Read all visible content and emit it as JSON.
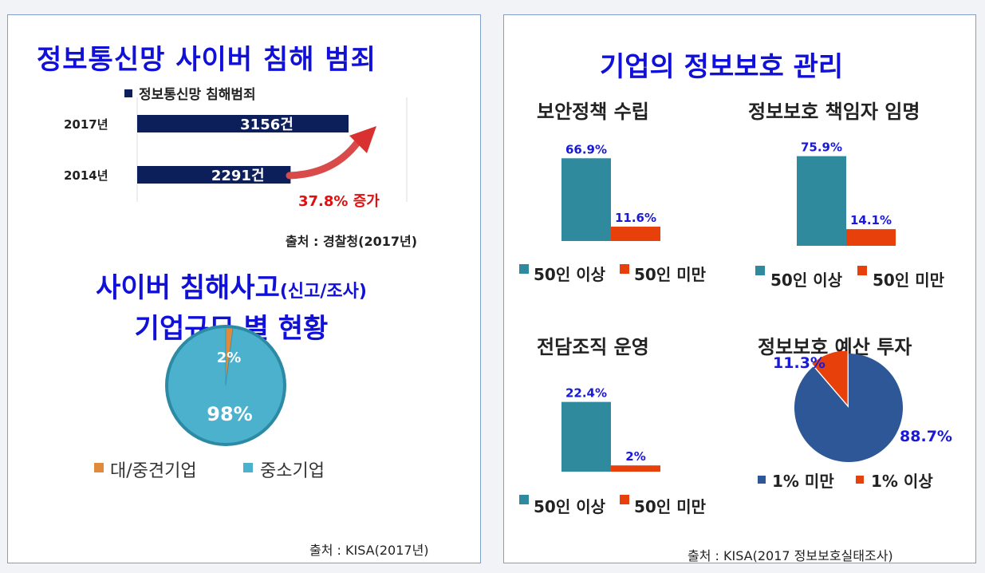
{
  "left": {
    "crime": {
      "title": "정보통신망 사이버 침해 범죄",
      "legend": "정보통신망 침해범죄",
      "source": "출처 : 경찰청(2017년)",
      "increase_label": "37.8% 증가"
    },
    "incident": {
      "title_line1": "사이버 침해사고",
      "title_suffix": "(신고/조사)",
      "title_line2": "기업규모 별 현황",
      "source": "출처 : KISA(2017년)"
    }
  },
  "right": {
    "title": "기업의 정보보호 관리",
    "source": "출처 : KISA(2017 정보보호실태조사)"
  },
  "colors": {
    "navy": "#0d1f5a",
    "teal": "#2f8a9e",
    "orange_red": "#e8400a",
    "pie_blue": "#2d5797",
    "pie_light": "#4bb1cc",
    "pie_orange": "#e08a3c",
    "red_text": "#e01010"
  },
  "chart_data": [
    {
      "type": "bar",
      "orientation": "horizontal",
      "title": "정보통신망 사이버 침해 범죄",
      "categories": [
        "2017년",
        "2014년"
      ],
      "series": [
        {
          "name": "정보통신망 침해범죄",
          "values": [
            3156,
            2291
          ]
        }
      ],
      "data_labels": [
        "3156건",
        "2291건"
      ],
      "annotation": "37.8% 증가"
    },
    {
      "type": "pie",
      "title": "사이버 침해사고(신고/조사) 기업규모 별 현황",
      "labels": [
        "대/중견기업",
        "중소기업"
      ],
      "values": [
        2,
        98
      ],
      "data_labels": [
        "2%",
        "98%"
      ]
    },
    {
      "type": "bar",
      "title": "보안정책 수립",
      "categories": [
        "50인 이상",
        "50인 미만"
      ],
      "values": [
        66.9,
        11.6
      ],
      "data_labels": [
        "66.9%",
        "11.6%"
      ]
    },
    {
      "type": "bar",
      "title": "정보보호 책임자 임명",
      "categories": [
        "50인 이상",
        "50인 미만"
      ],
      "values": [
        75.9,
        14.1
      ],
      "data_labels": [
        "75.9%",
        "14.1%"
      ]
    },
    {
      "type": "bar",
      "title": "전담조직 운영",
      "categories": [
        "50인 이상",
        "50인 미만"
      ],
      "values": [
        22.4,
        2
      ],
      "data_labels": [
        "22.4%",
        "2%"
      ]
    },
    {
      "type": "pie",
      "title": "정보보호 예산 투자",
      "labels": [
        "1% 미만",
        "1% 이상"
      ],
      "values": [
        88.7,
        11.3
      ],
      "data_labels": [
        "88.7%",
        "11.3%"
      ]
    }
  ]
}
